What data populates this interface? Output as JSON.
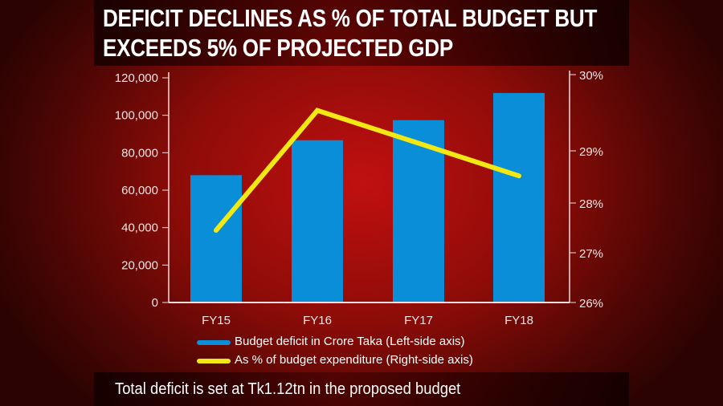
{
  "title_lines": [
    "DEFICIT DECLINES AS % OF TOTAL BUDGET BUT",
    "EXCEEDS 5% OF PROJECTED GDP"
  ],
  "caption": "Total deficit is set at Tk1.12tn in the proposed budget",
  "colors": {
    "bar": "#0a8ed8",
    "line": "#f2e814",
    "axis": "#f0dede"
  },
  "chart_data": {
    "type": "bar+line",
    "categories": [
      "FY15",
      "FY16",
      "FY17",
      "FY18"
    ],
    "series": [
      {
        "name": "Budget deficit in Crore Taka (Left-side axis)",
        "type": "bar",
        "axis": "left",
        "values": [
          68000,
          86700,
          97400,
          111900
        ]
      },
      {
        "name": "As % of budget expenditure (Right-side axis)",
        "type": "line",
        "axis": "right",
        "values": [
          27.45,
          29.53,
          29.1,
          28.52
        ]
      }
    ],
    "left_axis": {
      "ylim": [
        0,
        120000
      ],
      "ticks": [
        0,
        20000,
        40000,
        60000,
        80000,
        100000,
        120000
      ],
      "tick_labels": [
        "0",
        "20,000",
        "40,000",
        "60,000",
        "80,000",
        "100,000",
        "120,000"
      ]
    },
    "right_axis": {
      "ylim": [
        26,
        30
      ],
      "ticks": [
        26,
        27,
        28,
        29,
        30
      ],
      "tick_labels": [
        "26%",
        "27%",
        "28%",
        "29%",
        "30%"
      ]
    },
    "grid": false,
    "legend": "bottom"
  }
}
